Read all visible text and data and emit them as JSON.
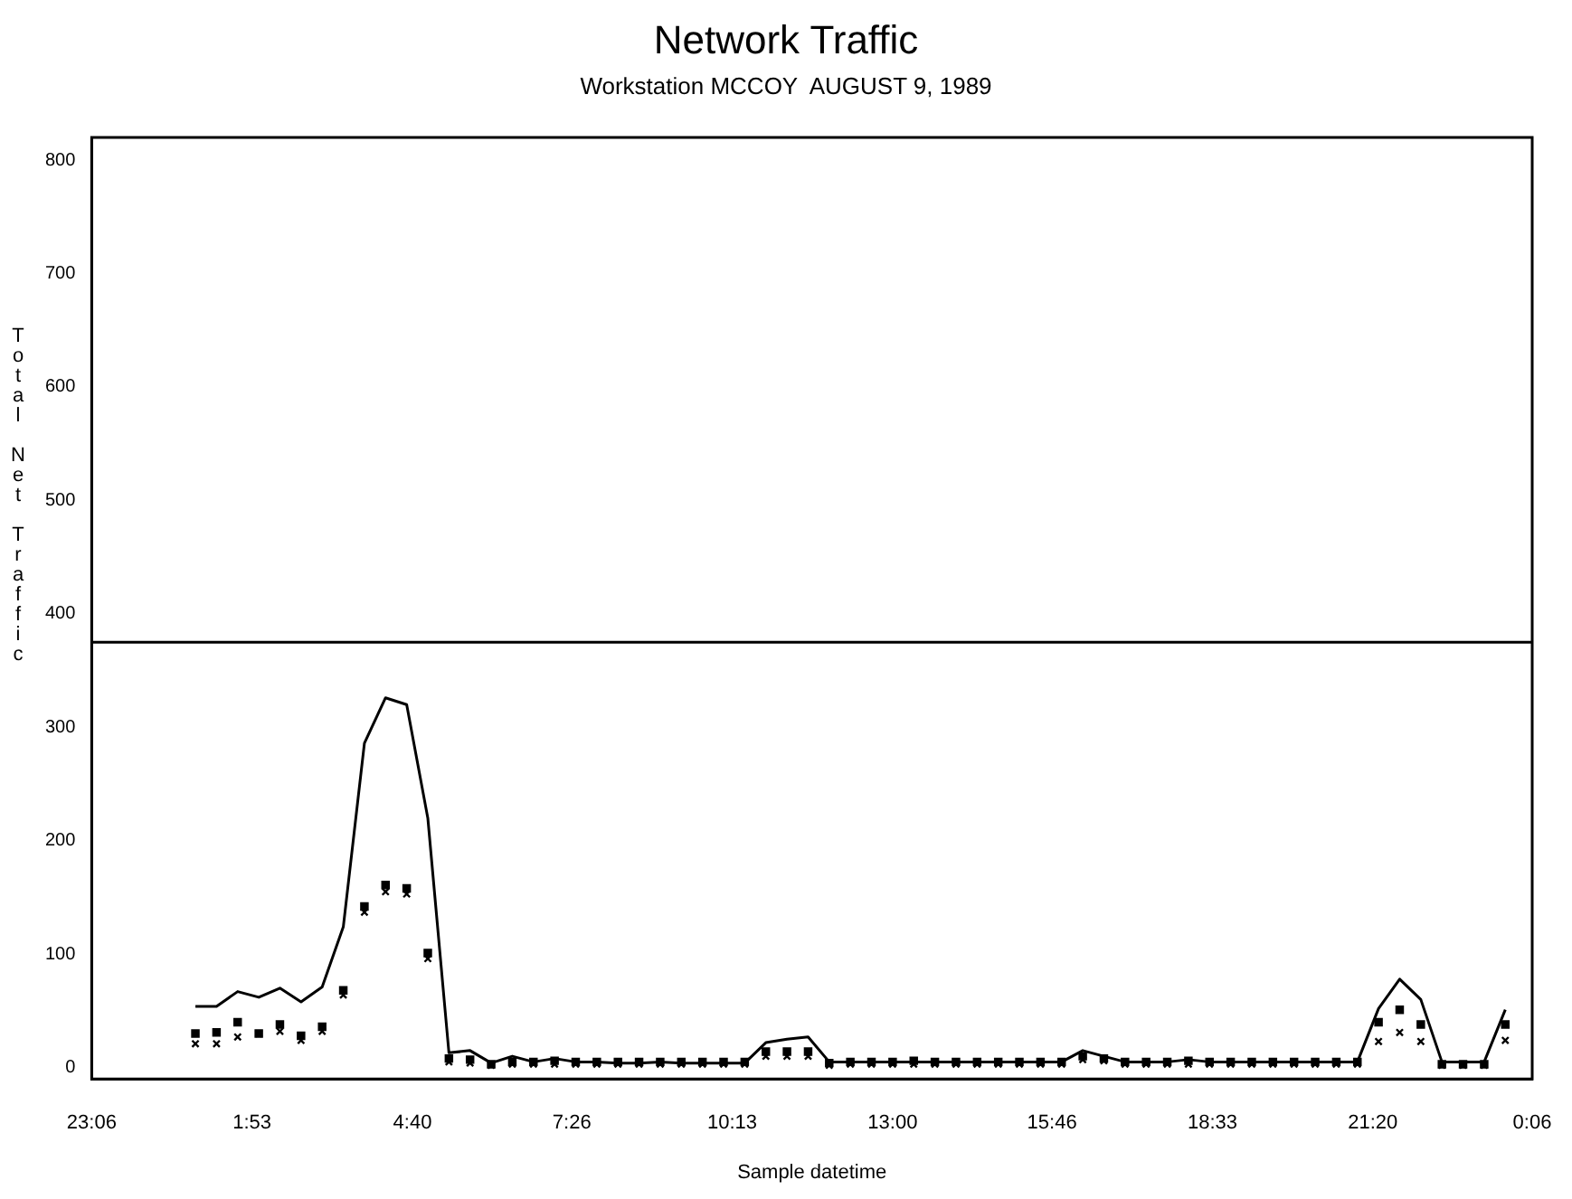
{
  "chart_data": {
    "type": "line",
    "title": "Network Traffic",
    "subtitle": "Workstation MCCOY  AUGUST 9, 1989",
    "xlabel": "Sample datetime",
    "ylabel": "Total Net Traffic",
    "x": [
      "1989-08-09T00:54",
      "1989-08-09T01:16",
      "1989-08-09T01:38",
      "1989-08-09T02:00",
      "1989-08-09T02:22",
      "1989-08-09T02:44",
      "1989-08-09T03:06",
      "1989-08-09T03:28",
      "1989-08-09T03:50",
      "1989-08-09T04:12",
      "1989-08-09T04:34",
      "1989-08-09T04:56",
      "1989-08-09T05:18",
      "1989-08-09T05:40",
      "1989-08-09T06:02",
      "1989-08-09T06:24",
      "1989-08-09T06:46",
      "1989-08-09T07:08",
      "1989-08-09T07:30",
      "1989-08-09T07:52",
      "1989-08-09T08:14",
      "1989-08-09T08:36",
      "1989-08-09T08:58",
      "1989-08-09T09:20",
      "1989-08-09T09:42",
      "1989-08-09T10:04",
      "1989-08-09T10:26",
      "1989-08-09T10:48",
      "1989-08-09T11:10",
      "1989-08-09T11:32",
      "1989-08-09T11:54",
      "1989-08-09T12:16",
      "1989-08-09T12:38",
      "1989-08-09T13:00",
      "1989-08-09T13:22",
      "1989-08-09T13:44",
      "1989-08-09T14:06",
      "1989-08-09T14:28",
      "1989-08-09T14:50",
      "1989-08-09T15:12",
      "1989-08-09T15:34",
      "1989-08-09T15:56",
      "1989-08-09T16:18",
      "1989-08-09T16:40",
      "1989-08-09T17:02",
      "1989-08-09T17:24",
      "1989-08-09T17:46",
      "1989-08-09T18:08",
      "1989-08-09T18:30",
      "1989-08-09T18:52",
      "1989-08-09T19:14",
      "1989-08-09T19:36",
      "1989-08-09T19:58",
      "1989-08-09T20:20",
      "1989-08-09T20:42",
      "1989-08-09T21:04",
      "1989-08-09T21:26",
      "1989-08-09T21:48",
      "1989-08-09T22:10",
      "1989-08-09T22:32",
      "1989-08-09T22:54",
      "1989-08-09T23:16",
      "1989-08-09T23:38"
    ],
    "series": [
      {
        "type": "line",
        "color": "#000000",
        "marker": "none",
        "line_style": "solid",
        "values": [
          54,
          54,
          67,
          62,
          70,
          58,
          71,
          124,
          286,
          326,
          320,
          220,
          13,
          15,
          4,
          10,
          5,
          8,
          5,
          5,
          4,
          4,
          5,
          4,
          4,
          4,
          4,
          22,
          25,
          27,
          5,
          5,
          5,
          5,
          5,
          5,
          5,
          5,
          5,
          5,
          5,
          5,
          15,
          10,
          5,
          5,
          5,
          7,
          5,
          5,
          5,
          5,
          5,
          5,
          5,
          5,
          52,
          78,
          60,
          5,
          5,
          5,
          51
        ]
      },
      {
        "type": "scatter",
        "color": "#000000",
        "marker": "square",
        "values": [
          30,
          31,
          40,
          30,
          38,
          28,
          36,
          68,
          142,
          161,
          158,
          101,
          8,
          7,
          3,
          5,
          5,
          6,
          5,
          5,
          5,
          5,
          5,
          5,
          5,
          5,
          5,
          14,
          14,
          14,
          4,
          5,
          5,
          5,
          6,
          5,
          5,
          5,
          5,
          5,
          5,
          5,
          10,
          8,
          5,
          5,
          5,
          6,
          5,
          5,
          5,
          5,
          5,
          5,
          5,
          5,
          40,
          51,
          38,
          3,
          3,
          3,
          38
        ]
      },
      {
        "type": "scatter",
        "color": "#000000",
        "marker": "cross",
        "values": [
          21,
          21,
          27,
          30,
          32,
          24,
          32,
          64,
          137,
          155,
          153,
          96,
          5,
          4,
          2,
          3,
          3,
          3,
          3,
          3,
          3,
          3,
          3,
          3,
          3,
          3,
          3,
          10,
          10,
          10,
          2,
          3,
          3,
          3,
          3,
          3,
          3,
          3,
          3,
          3,
          3,
          3,
          7,
          6,
          3,
          3,
          3,
          3,
          3,
          3,
          3,
          3,
          3,
          3,
          3,
          3,
          23,
          31,
          23,
          2,
          2,
          2,
          24
        ]
      }
    ],
    "xlim": [
      "1989-08-08T23:06",
      "1989-08-10T00:06"
    ],
    "xticks": [
      {
        "value": "1989-08-08T23:06",
        "label": "23:06"
      },
      {
        "value": "1989-08-09T01:53",
        "label": "1:53"
      },
      {
        "value": "1989-08-09T04:40",
        "label": "4:40"
      },
      {
        "value": "1989-08-09T07:26",
        "label": "7:26"
      },
      {
        "value": "1989-08-09T10:13",
        "label": "10:13"
      },
      {
        "value": "1989-08-09T13:00",
        "label": "13:00"
      },
      {
        "value": "1989-08-09T15:46",
        "label": "15:46"
      },
      {
        "value": "1989-08-09T18:33",
        "label": "18:33"
      },
      {
        "value": "1989-08-09T21:20",
        "label": "21:20"
      },
      {
        "value": "1989-08-10T00:06",
        "label": "0:06"
      }
    ],
    "ylim": [
      -10,
      820
    ],
    "yticks": [
      0,
      100,
      200,
      300,
      400,
      500,
      600,
      700,
      800
    ],
    "ref_lines": [
      {
        "axis": "y",
        "value": 375,
        "color": "#000000",
        "line_style": "solid"
      }
    ],
    "grid": false,
    "legend": false
  }
}
